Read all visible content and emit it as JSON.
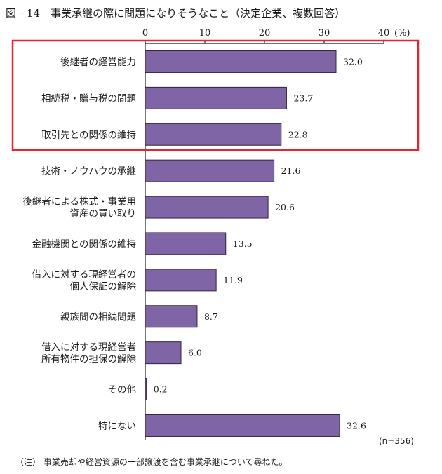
{
  "chart_data": {
    "type": "bar",
    "orientation": "horizontal",
    "title": "図－14　事業承継の際に問題になりそうなこと（決定企業、複数回答）",
    "xlabel": "",
    "ylabel": "",
    "unit_label": "(%)",
    "xlim": [
      0,
      40
    ],
    "ticks": [
      0,
      10,
      20,
      30,
      40
    ],
    "grid": false,
    "categories": [
      [
        "後継者の経営能力"
      ],
      [
        "相続税・贈与税の問題"
      ],
      [
        "取引先との関係の維持"
      ],
      [
        "技術・ノウハウの承継"
      ],
      [
        "後継者による株式・事業用",
        "資産の買い取り"
      ],
      [
        "金融機関との関係の維持"
      ],
      [
        "借入に対する現経営者の",
        "個人保証の解除"
      ],
      [
        "親族間の相続問題"
      ],
      [
        "借入に対する現経営者",
        "所有物件の担保の解除"
      ],
      [
        "その他"
      ],
      [
        "特にない"
      ]
    ],
    "values": [
      32.0,
      23.7,
      22.8,
      21.6,
      20.6,
      13.5,
      11.9,
      8.7,
      6.0,
      0.2,
      32.6
    ],
    "value_labels": [
      "32.0",
      "23.7",
      "22.8",
      "21.6",
      "20.6",
      "13.5",
      "11.9",
      "8.7",
      "6.0",
      "0.2",
      "32.6"
    ],
    "highlighted_categories": [
      "後継者の経営能力",
      "相続税・贈与税の問題",
      "取引先との関係の維持"
    ],
    "sample_size": "(n=356)",
    "note": "（注） 事業売却や経営資源の一部譲渡を含む事業承継について尋ねた。",
    "colors": {
      "bar_fill": "#7f65a6",
      "bar_stroke": "#2f2540",
      "highlight_box": "#e8242c",
      "axis": "#1a1a1a"
    }
  }
}
